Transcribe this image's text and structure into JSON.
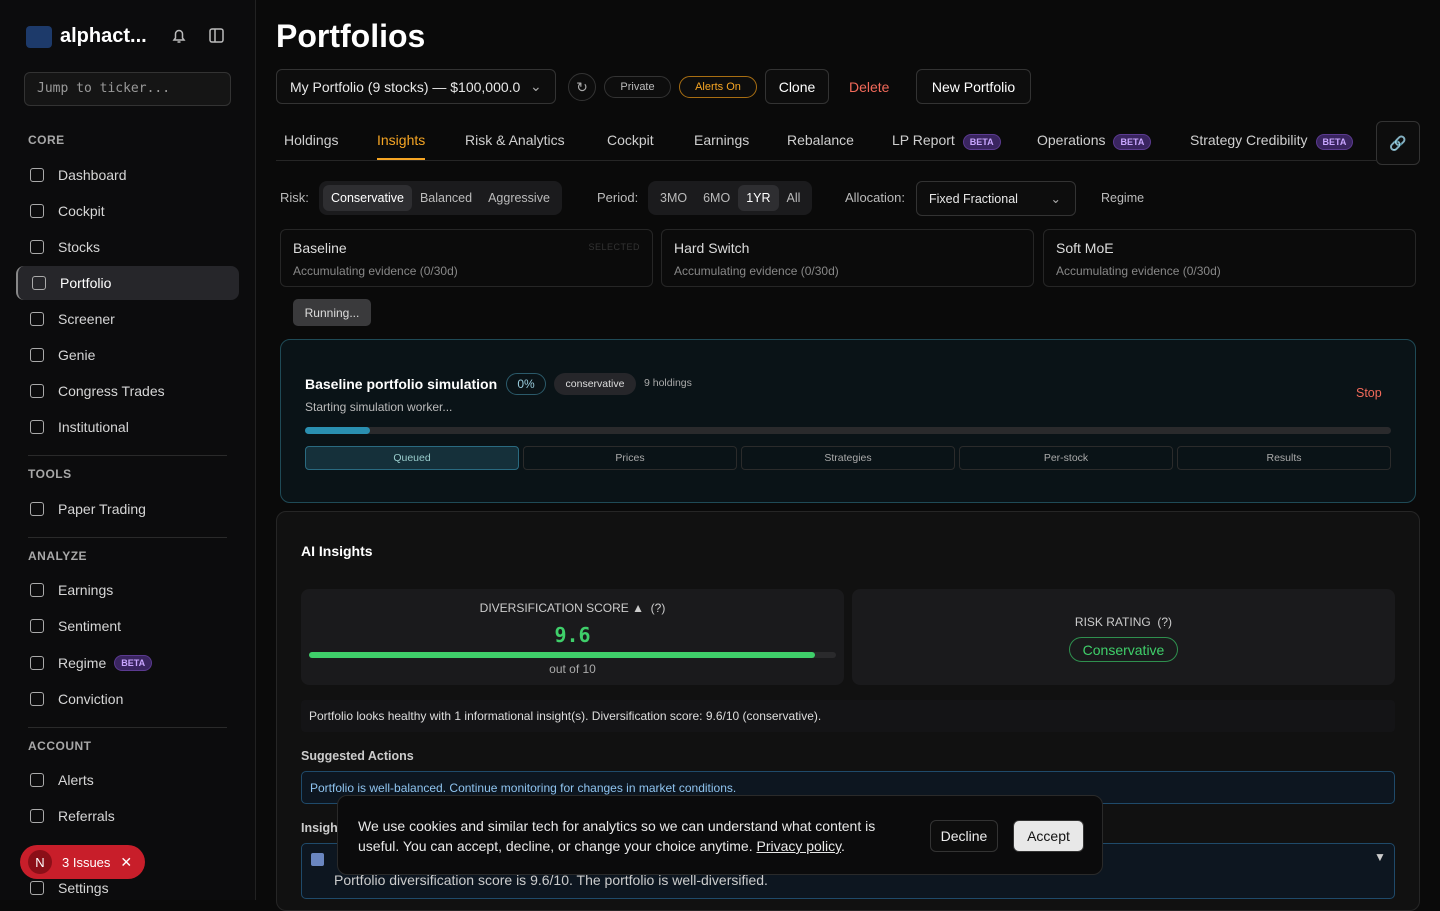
{
  "sidebar": {
    "brand": "alphact...",
    "search_placeholder": "Jump to ticker...",
    "sections": [
      {
        "title": "CORE",
        "items": [
          {
            "label": "Dashboard"
          },
          {
            "label": "Cockpit"
          },
          {
            "label": "Stocks"
          },
          {
            "label": "Portfolio"
          },
          {
            "label": "Screener"
          },
          {
            "label": "Genie"
          },
          {
            "label": "Congress Trades"
          },
          {
            "label": "Institutional"
          }
        ]
      },
      {
        "title": "TOOLS",
        "items": [
          {
            "label": "Paper Trading"
          }
        ]
      },
      {
        "title": "ANALYZE",
        "items": [
          {
            "label": "Earnings"
          },
          {
            "label": "Sentiment"
          },
          {
            "label": "Regime",
            "badge": "BETA"
          },
          {
            "label": "Conviction"
          }
        ]
      },
      {
        "title": "ACCOUNT",
        "items": [
          {
            "label": "Alerts"
          },
          {
            "label": "Referrals"
          },
          {
            "label": "Settings"
          }
        ]
      }
    ],
    "active": "Portfolio"
  },
  "issues": {
    "avatar": "N",
    "label": "3 Issues"
  },
  "header": {
    "title": "Portfolios",
    "portfolio_select": "My Portfolio (9 stocks) — $100,000.0",
    "private": "Private",
    "alerts": "Alerts On",
    "clone": "Clone",
    "delete": "Delete",
    "new": "New Portfolio"
  },
  "tabs": [
    {
      "label": "Holdings"
    },
    {
      "label": "Insights"
    },
    {
      "label": "Risk & Analytics"
    },
    {
      "label": "Cockpit"
    },
    {
      "label": "Earnings"
    },
    {
      "label": "Rebalance"
    },
    {
      "label": "LP Report",
      "badge": "BETA"
    },
    {
      "label": "Operations",
      "badge": "BETA"
    },
    {
      "label": "Strategy Credibility",
      "badge": "BETA"
    }
  ],
  "active_tab": "Insights",
  "filters": {
    "risk_label": "Risk:",
    "risk": [
      "Conservative",
      "Balanced",
      "Aggressive"
    ],
    "period_label": "Period:",
    "period": [
      "3MO",
      "6MO",
      "1YR",
      "All"
    ],
    "allocation_label": "Allocation:",
    "allocation": "Fixed Fractional",
    "regime": "Regime"
  },
  "strategies": [
    {
      "name": "Baseline",
      "status": "Accumulating evidence (0/30d)",
      "tag": "SELECTED"
    },
    {
      "name": "Hard Switch",
      "status": "Accumulating evidence (0/30d)"
    },
    {
      "name": "Soft MoE",
      "status": "Accumulating evidence (0/30d)"
    }
  ],
  "running": "Running...",
  "simulation": {
    "title": "Baseline portfolio simulation",
    "percent": "0%",
    "profile": "conservative",
    "holdings": "9 holdings",
    "status": "Starting simulation worker...",
    "stop": "Stop",
    "steps": [
      "Queued",
      "Prices",
      "Strategies",
      "Per-stock",
      "Results"
    ]
  },
  "insights": {
    "title": "AI Insights",
    "diversification": {
      "label": "DIVERSIFICATION SCORE ▲",
      "help": "(?)",
      "score": 9.6,
      "max": 10,
      "max_label": "out of 10"
    },
    "risk": {
      "label": "RISK RATING",
      "help": "(?)",
      "value": "Conservative"
    },
    "summary": "Portfolio looks healthy with 1 informational insight(s). Diversification score: 9.6/10 (conservative).",
    "actions_title": "Suggested Actions",
    "action": "Portfolio is well-balanced. Continue monitoring for changes in market conditions.",
    "insights_title": "Insigh",
    "insight_text": "Portfolio diversification score is 9.6/10. The portfolio is well-diversified."
  },
  "cookie": {
    "text": "We use cookies and similar tech for analytics so we can understand what content is useful. You can accept, decline, or change your choice anytime.",
    "link": "Privacy policy",
    "decline": "Decline",
    "accept": "Accept"
  }
}
